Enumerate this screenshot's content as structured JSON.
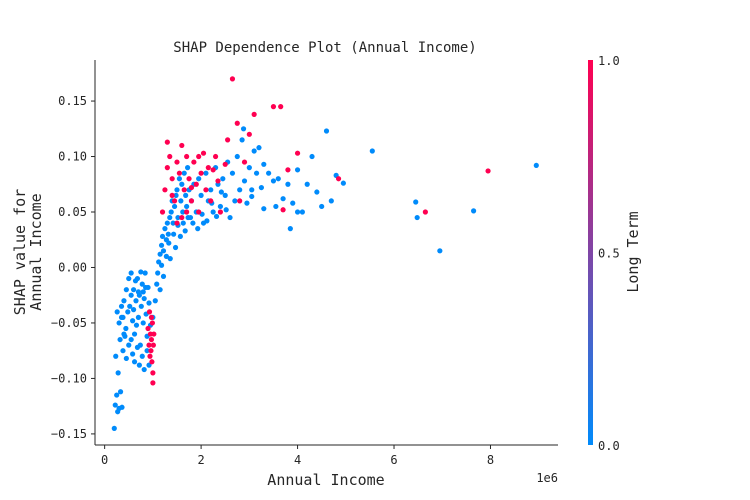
{
  "chart_data": {
    "type": "scatter",
    "title": "SHAP Dependence Plot (Annual Income)",
    "xlabel": "Annual Income",
    "ylabel": "SHAP value for\nAnnual Income",
    "x_offset_label": "1e6",
    "xlim": [
      -0.2,
      9.4
    ],
    "ylim": [
      -0.16,
      0.187
    ],
    "x_ticks": [
      0,
      2,
      4,
      6,
      8
    ],
    "x_tick_labels": [
      "0",
      "2",
      "4",
      "6",
      "8"
    ],
    "y_ticks": [
      -0.15,
      -0.1,
      -0.05,
      0.0,
      0.05,
      0.1,
      0.15
    ],
    "y_tick_labels": [
      "−0.15",
      "−0.10",
      "−0.05",
      "0.00",
      "0.05",
      "0.10",
      "0.15"
    ],
    "colorbar": {
      "label": "Long Term",
      "ticks": [
        "0.0",
        "0.5",
        "1.0"
      ],
      "low_color": "#008bfb",
      "high_color": "#ff0051"
    },
    "series": [
      {
        "color": "#008bfb",
        "value": 0,
        "points": [
          [
            0.2,
            -0.145
          ],
          [
            0.22,
            -0.124
          ],
          [
            0.25,
            -0.115
          ],
          [
            0.27,
            -0.13
          ],
          [
            0.3,
            -0.127
          ],
          [
            0.33,
            -0.112
          ],
          [
            0.36,
            -0.126
          ],
          [
            0.23,
            -0.08
          ],
          [
            0.28,
            -0.095
          ],
          [
            0.32,
            -0.065
          ],
          [
            0.38,
            -0.075
          ],
          [
            0.42,
            -0.062
          ],
          [
            0.45,
            -0.082
          ],
          [
            0.5,
            -0.07
          ],
          [
            0.26,
            -0.04
          ],
          [
            0.3,
            -0.05
          ],
          [
            0.35,
            -0.045
          ],
          [
            0.4,
            -0.03
          ],
          [
            0.44,
            -0.055
          ],
          [
            0.48,
            -0.04
          ],
          [
            0.52,
            -0.035
          ],
          [
            0.55,
            -0.025
          ],
          [
            0.58,
            -0.048
          ],
          [
            0.6,
            -0.02
          ],
          [
            0.62,
            -0.06
          ],
          [
            0.65,
            -0.03
          ],
          [
            0.68,
            -0.01
          ],
          [
            0.7,
            -0.045
          ],
          [
            0.72,
            -0.025
          ],
          [
            0.74,
            -0.07
          ],
          [
            0.76,
            -0.035
          ],
          [
            0.78,
            -0.015
          ],
          [
            0.8,
            -0.05
          ],
          [
            0.82,
            -0.028
          ],
          [
            0.84,
            -0.005
          ],
          [
            0.86,
            -0.042
          ],
          [
            0.88,
            -0.062
          ],
          [
            0.9,
            -0.018
          ],
          [
            0.92,
            -0.032
          ],
          [
            0.95,
            -0.052
          ],
          [
            0.45,
            -0.02
          ],
          [
            0.5,
            -0.01
          ],
          [
            0.55,
            -0.005
          ],
          [
            0.6,
            -0.038
          ],
          [
            0.64,
            -0.012
          ],
          [
            0.66,
            -0.052
          ],
          [
            0.7,
            -0.022
          ],
          [
            0.75,
            -0.004
          ],
          [
            0.8,
            -0.022
          ],
          [
            0.85,
            -0.018
          ],
          [
            0.4,
            -0.06
          ],
          [
            0.38,
            -0.045
          ],
          [
            0.35,
            -0.035
          ],
          [
            0.55,
            -0.065
          ],
          [
            0.58,
            -0.078
          ],
          [
            0.62,
            -0.085
          ],
          [
            0.68,
            -0.072
          ],
          [
            0.72,
            -0.088
          ],
          [
            0.78,
            -0.08
          ],
          [
            0.82,
            -0.092
          ],
          [
            0.88,
            -0.075
          ],
          [
            0.92,
            -0.088
          ],
          [
            1.0,
            -0.045
          ],
          [
            1.05,
            -0.03
          ],
          [
            1.08,
            -0.015
          ],
          [
            1.1,
            -0.005
          ],
          [
            1.12,
            0.005
          ],
          [
            1.15,
            0.012
          ],
          [
            1.18,
            0.02
          ],
          [
            1.2,
            0.028
          ],
          [
            1.22,
            0.015
          ],
          [
            1.25,
            0.035
          ],
          [
            1.28,
            0.025
          ],
          [
            1.3,
            0.04
          ],
          [
            1.32,
            0.03
          ],
          [
            1.35,
            0.045
          ],
          [
            1.38,
            0.05
          ],
          [
            1.4,
            0.06
          ],
          [
            1.42,
            0.04
          ],
          [
            1.45,
            0.055
          ],
          [
            1.48,
            0.065
          ],
          [
            1.5,
            0.07
          ],
          [
            1.52,
            0.045
          ],
          [
            1.55,
            0.08
          ],
          [
            1.58,
            0.06
          ],
          [
            1.6,
            0.075
          ],
          [
            1.62,
            0.05
          ],
          [
            1.65,
            0.085
          ],
          [
            1.68,
            0.065
          ],
          [
            1.7,
            0.055
          ],
          [
            1.72,
            0.09
          ],
          [
            1.75,
            0.07
          ],
          [
            1.78,
            0.045
          ],
          [
            1.8,
            0.06
          ],
          [
            1.85,
            0.075
          ],
          [
            1.9,
            0.05
          ],
          [
            1.95,
            0.08
          ],
          [
            2.0,
            0.065
          ],
          [
            2.05,
            0.04
          ],
          [
            2.1,
            0.085
          ],
          [
            2.15,
            0.06
          ],
          [
            2.2,
            0.07
          ],
          [
            2.25,
            0.05
          ],
          [
            2.3,
            0.09
          ],
          [
            2.35,
            0.075
          ],
          [
            2.4,
            0.055
          ],
          [
            2.45,
            0.08
          ],
          [
            2.5,
            0.065
          ],
          [
            2.55,
            0.095
          ],
          [
            2.6,
            0.045
          ],
          [
            2.65,
            0.085
          ],
          [
            2.7,
            0.06
          ],
          [
            2.75,
            0.1
          ],
          [
            2.8,
            0.07
          ],
          [
            2.85,
            0.115
          ],
          [
            2.88,
            0.125
          ],
          [
            2.9,
            0.078
          ],
          [
            2.95,
            0.058
          ],
          [
            3.0,
            0.09
          ],
          [
            3.05,
            0.07
          ],
          [
            3.1,
            0.105
          ],
          [
            3.15,
            0.085
          ],
          [
            3.2,
            0.108
          ],
          [
            3.25,
            0.072
          ],
          [
            3.3,
            0.093
          ],
          [
            3.4,
            0.085
          ],
          [
            3.5,
            0.078
          ],
          [
            3.6,
            0.08
          ],
          [
            3.7,
            0.062
          ],
          [
            3.8,
            0.075
          ],
          [
            3.9,
            0.058
          ],
          [
            4.0,
            0.088
          ],
          [
            4.1,
            0.05
          ],
          [
            4.2,
            0.075
          ],
          [
            4.3,
            0.1
          ],
          [
            4.4,
            0.068
          ],
          [
            4.5,
            0.055
          ],
          [
            4.6,
            0.123
          ],
          [
            4.7,
            0.06
          ],
          [
            4.8,
            0.083
          ],
          [
            4.95,
            0.076
          ],
          [
            3.3,
            0.053
          ],
          [
            3.55,
            0.055
          ],
          [
            3.85,
            0.035
          ],
          [
            4.0,
            0.05
          ],
          [
            3.05,
            0.064
          ],
          [
            5.55,
            0.105
          ],
          [
            6.45,
            0.059
          ],
          [
            6.48,
            0.045
          ],
          [
            6.95,
            0.015
          ],
          [
            7.65,
            0.051
          ],
          [
            8.95,
            0.092
          ],
          [
            1.15,
            -0.02
          ],
          [
            1.18,
            0.002
          ],
          [
            1.22,
            -0.008
          ],
          [
            1.28,
            0.01
          ],
          [
            1.33,
            0.022
          ],
          [
            1.36,
            0.008
          ],
          [
            1.43,
            0.03
          ],
          [
            1.47,
            0.018
          ],
          [
            1.52,
            0.038
          ],
          [
            1.57,
            0.028
          ],
          [
            1.63,
            0.04
          ],
          [
            1.67,
            0.033
          ],
          [
            1.73,
            0.045
          ],
          [
            1.83,
            0.04
          ],
          [
            1.93,
            0.035
          ],
          [
            2.02,
            0.048
          ],
          [
            2.12,
            0.042
          ],
          [
            2.22,
            0.058
          ],
          [
            2.32,
            0.046
          ],
          [
            2.42,
            0.068
          ],
          [
            2.52,
            0.052
          ]
        ]
      },
      {
        "color": "#ff0051",
        "value": 1,
        "points": [
          [
            0.9,
            -0.055
          ],
          [
            0.92,
            -0.07
          ],
          [
            0.94,
            -0.08
          ],
          [
            0.95,
            -0.06
          ],
          [
            0.96,
            -0.075
          ],
          [
            0.97,
            -0.065
          ],
          [
            0.98,
            -0.085
          ],
          [
            0.99,
            -0.05
          ],
          [
            1.0,
            -0.095
          ],
          [
            1.01,
            -0.07
          ],
          [
            1.02,
            -0.06
          ],
          [
            0.93,
            -0.04
          ],
          [
            0.97,
            -0.045
          ],
          [
            1.0,
            -0.104
          ],
          [
            1.2,
            0.05
          ],
          [
            1.25,
            0.07
          ],
          [
            1.3,
            0.09
          ],
          [
            1.35,
            0.1
          ],
          [
            1.4,
            0.08
          ],
          [
            1.45,
            0.06
          ],
          [
            1.5,
            0.095
          ],
          [
            1.55,
            0.085
          ],
          [
            1.6,
            0.11
          ],
          [
            1.65,
            0.07
          ],
          [
            1.7,
            0.1
          ],
          [
            1.75,
            0.08
          ],
          [
            1.8,
            0.06
          ],
          [
            1.85,
            0.095
          ],
          [
            1.9,
            0.075
          ],
          [
            1.95,
            0.1
          ],
          [
            2.0,
            0.085
          ],
          [
            2.05,
            0.103
          ],
          [
            2.1,
            0.07
          ],
          [
            2.15,
            0.09
          ],
          [
            2.2,
            0.06
          ],
          [
            2.3,
            0.1
          ],
          [
            2.4,
            0.05
          ],
          [
            2.5,
            0.093
          ],
          [
            2.55,
            0.115
          ],
          [
            2.65,
            0.17
          ],
          [
            2.75,
            0.13
          ],
          [
            2.9,
            0.095
          ],
          [
            3.0,
            0.12
          ],
          [
            3.1,
            0.138
          ],
          [
            3.5,
            0.145
          ],
          [
            3.65,
            0.145
          ],
          [
            3.8,
            0.088
          ],
          [
            4.0,
            0.103
          ],
          [
            3.7,
            0.052
          ],
          [
            1.3,
            0.113
          ],
          [
            1.5,
            0.04
          ],
          [
            1.7,
            0.05
          ],
          [
            1.95,
            0.05
          ],
          [
            2.35,
            0.078
          ],
          [
            2.8,
            0.06
          ],
          [
            4.85,
            0.08
          ],
          [
            6.65,
            0.05
          ],
          [
            7.95,
            0.087
          ],
          [
            1.4,
            0.065
          ],
          [
            1.6,
            0.045
          ],
          [
            1.8,
            0.072
          ],
          [
            2.25,
            0.088
          ]
        ]
      }
    ]
  }
}
